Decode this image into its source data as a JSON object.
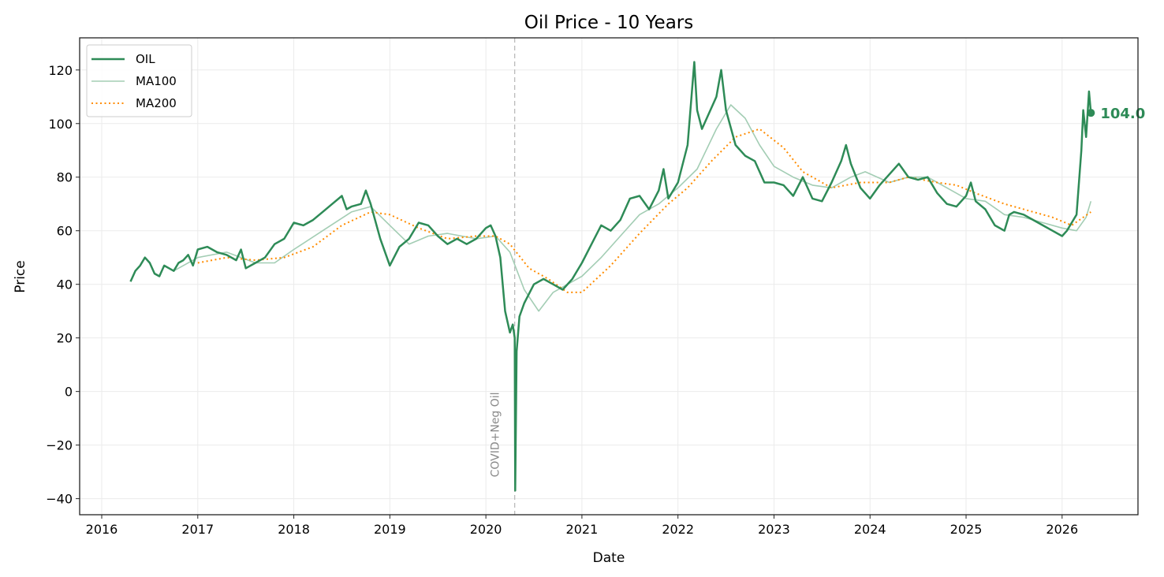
{
  "chart_data": {
    "type": "line",
    "title": "Oil Price - 10 Years",
    "xlabel": "Date",
    "ylabel": "Price",
    "xlim": [
      2015.77,
      2026.79
    ],
    "ylim": [
      -46,
      132
    ],
    "xticks": [
      2016,
      2017,
      2018,
      2019,
      2020,
      2021,
      2022,
      2023,
      2024,
      2025,
      2026
    ],
    "xtick_labels": [
      "2016",
      "2017",
      "2018",
      "2019",
      "2020",
      "2021",
      "2022",
      "2023",
      "2024",
      "2025",
      "2026"
    ],
    "yticks": [
      -40,
      -20,
      0,
      20,
      40,
      60,
      80,
      100,
      120
    ],
    "ytick_labels": [
      "−40",
      "−20",
      "0",
      "20",
      "40",
      "60",
      "80",
      "100",
      "120"
    ],
    "grid": true,
    "legend_placement": "top-left",
    "colors": {
      "oil": "#2e8b57",
      "ma100": "#a3cdb4",
      "ma200": "#ff8c00",
      "event": "#bbbbbb",
      "event_text": "#888888"
    },
    "series": [
      {
        "name": "OIL",
        "x": [
          2016.3,
          2016.35,
          2016.4,
          2016.45,
          2016.5,
          2016.55,
          2016.6,
          2016.65,
          2016.7,
          2016.75,
          2016.8,
          2016.85,
          2016.9,
          2016.95,
          2017.0,
          2017.1,
          2017.2,
          2017.3,
          2017.4,
          2017.45,
          2017.5,
          2017.6,
          2017.7,
          2017.8,
          2017.9,
          2018.0,
          2018.1,
          2018.2,
          2018.3,
          2018.4,
          2018.5,
          2018.55,
          2018.6,
          2018.7,
          2018.75,
          2018.8,
          2018.9,
          2019.0,
          2019.1,
          2019.2,
          2019.3,
          2019.4,
          2019.5,
          2019.6,
          2019.7,
          2019.8,
          2019.9,
          2020.0,
          2020.05,
          2020.1,
          2020.15,
          2020.2,
          2020.25,
          2020.28,
          2020.3,
          2020.305,
          2020.32,
          2020.35,
          2020.4,
          2020.5,
          2020.6,
          2020.7,
          2020.8,
          2020.9,
          2021.0,
          2021.1,
          2021.2,
          2021.3,
          2021.4,
          2021.5,
          2021.6,
          2021.7,
          2021.8,
          2021.85,
          2021.9,
          2022.0,
          2022.1,
          2022.17,
          2022.2,
          2022.25,
          2022.3,
          2022.4,
          2022.45,
          2022.5,
          2022.6,
          2022.7,
          2022.8,
          2022.9,
          2023.0,
          2023.1,
          2023.2,
          2023.3,
          2023.4,
          2023.5,
          2023.6,
          2023.7,
          2023.75,
          2023.8,
          2023.9,
          2024.0,
          2024.1,
          2024.2,
          2024.3,
          2024.4,
          2024.5,
          2024.6,
          2024.7,
          2024.8,
          2024.9,
          2025.0,
          2025.05,
          2025.1,
          2025.2,
          2025.3,
          2025.4,
          2025.45,
          2025.5,
          2025.6,
          2025.7,
          2025.8,
          2025.9,
          2026.0,
          2026.05,
          2026.1,
          2026.15,
          2026.2,
          2026.22,
          2026.25,
          2026.28,
          2026.3
        ],
        "values": [
          41,
          45,
          47,
          50,
          48,
          44,
          43,
          47,
          46,
          45,
          48,
          49,
          51,
          47,
          53,
          54,
          52,
          51,
          49,
          53,
          46,
          48,
          50,
          55,
          57,
          63,
          62,
          64,
          67,
          70,
          73,
          68,
          69,
          70,
          75,
          70,
          57,
          47,
          54,
          57,
          63,
          62,
          58,
          55,
          57,
          55,
          57,
          61,
          62,
          58,
          50,
          30,
          22,
          25,
          20,
          -37,
          15,
          28,
          33,
          40,
          42,
          40,
          38,
          42,
          48,
          55,
          62,
          60,
          64,
          72,
          73,
          68,
          75,
          83,
          72,
          78,
          92,
          123,
          105,
          98,
          102,
          110,
          120,
          105,
          92,
          88,
          86,
          78,
          78,
          77,
          73,
          80,
          72,
          71,
          78,
          86,
          92,
          85,
          76,
          72,
          77,
          81,
          85,
          80,
          79,
          80,
          74,
          70,
          69,
          73,
          78,
          71,
          68,
          62,
          60,
          66,
          67,
          66,
          64,
          62,
          60,
          58,
          60,
          63,
          66,
          90,
          105,
          95,
          112,
          104
        ]
      },
      {
        "name": "MA100",
        "x": [
          2016.75,
          2017.0,
          2017.3,
          2017.6,
          2017.8,
          2018.0,
          2018.3,
          2018.6,
          2018.8,
          2019.0,
          2019.2,
          2019.4,
          2019.6,
          2019.9,
          2020.1,
          2020.25,
          2020.4,
          2020.55,
          2020.7,
          2020.9,
          2021.0,
          2021.2,
          2021.4,
          2021.6,
          2021.8,
          2022.0,
          2022.2,
          2022.4,
          2022.55,
          2022.7,
          2022.85,
          2023.0,
          2023.2,
          2023.4,
          2023.6,
          2023.8,
          2023.95,
          2024.2,
          2024.4,
          2024.6,
          2024.8,
          2025.0,
          2025.2,
          2025.4,
          2025.6,
          2025.8,
          2026.0,
          2026.15,
          2026.25,
          2026.3
        ],
        "values": [
          45,
          50,
          52,
          48,
          48,
          53,
          60,
          67,
          69,
          62,
          55,
          58,
          59,
          57,
          58,
          52,
          38,
          30,
          37,
          41,
          43,
          50,
          58,
          66,
          70,
          76,
          83,
          98,
          107,
          102,
          92,
          84,
          80,
          77,
          76,
          80,
          82,
          78,
          80,
          80,
          76,
          72,
          71,
          66,
          65,
          63,
          61,
          60,
          65,
          71
        ]
      },
      {
        "name": "MA200",
        "x": [
          2017.0,
          2017.3,
          2017.6,
          2017.9,
          2018.2,
          2018.5,
          2018.8,
          2019.0,
          2019.3,
          2019.6,
          2019.9,
          2020.1,
          2020.25,
          2020.45,
          2020.65,
          2020.85,
          2021.0,
          2021.3,
          2021.6,
          2021.9,
          2022.1,
          2022.35,
          2022.6,
          2022.85,
          2023.1,
          2023.3,
          2023.6,
          2023.9,
          2024.2,
          2024.4,
          2024.7,
          2024.9,
          2025.1,
          2025.4,
          2025.7,
          2025.9,
          2026.1,
          2026.3
        ],
        "values": [
          48,
          50,
          49,
          50,
          54,
          62,
          67,
          66,
          61,
          57,
          58,
          58,
          55,
          46,
          42,
          37,
          37,
          47,
          59,
          70,
          76,
          86,
          95,
          98,
          91,
          82,
          76,
          78,
          78,
          80,
          78,
          77,
          74,
          70,
          67,
          65,
          62,
          67
        ]
      }
    ],
    "annotations": {
      "event_x": 2020.3,
      "event_label": "COVID+Neg Oil",
      "last_value_label": "104.0",
      "last_value": 104.0,
      "last_x": 2026.3
    }
  }
}
